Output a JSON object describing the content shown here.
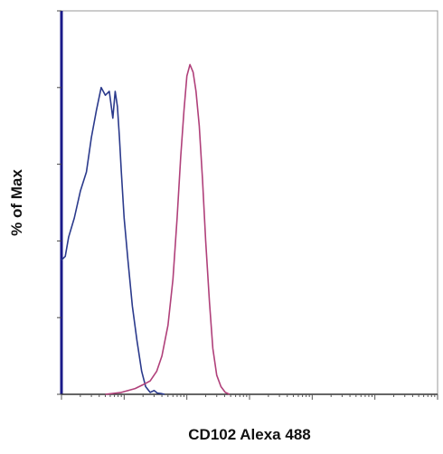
{
  "chart_data": {
    "type": "line",
    "title": "",
    "xlabel": "CD102 Alexa 488",
    "ylabel": "% of Max",
    "xscale": "log",
    "xlim": [
      0.1,
      100000
    ],
    "ylim": [
      0,
      100
    ],
    "grid": false,
    "legend": "none",
    "y_tick_values": [
      0,
      20,
      40,
      60,
      80,
      100
    ],
    "series": [
      {
        "color": "#2b3a8c",
        "x": [
          0.1,
          0.115,
          0.13,
          0.16,
          0.2,
          0.25,
          0.3,
          0.36,
          0.43,
          0.5,
          0.58,
          0.66,
          0.72,
          0.78,
          0.84,
          0.9,
          1.0,
          1.15,
          1.35,
          1.6,
          1.9,
          2.2,
          2.6,
          3.0,
          3.4,
          3.9,
          4.4
        ],
        "y": [
          35,
          36,
          41,
          46,
          53,
          58,
          67,
          74,
          80,
          78,
          79,
          72,
          79,
          75,
          67,
          58,
          46,
          35,
          23,
          14,
          6,
          2,
          0.5,
          1,
          0.3,
          0.2,
          0
        ]
      },
      {
        "color": "#b0407a",
        "x": [
          0.5,
          0.9,
          1.5,
          2.0,
          2.6,
          3.3,
          4.0,
          5.0,
          6.0,
          7.0,
          8.0,
          9.0,
          10.0,
          11.2,
          12.6,
          14.0,
          15.8,
          17.8,
          20.0,
          23.0,
          26.0,
          30.0,
          35.0,
          41.0,
          48.0
        ],
        "y": [
          0,
          0.5,
          1.5,
          2.5,
          3.5,
          6,
          10,
          18,
          30,
          46,
          62,
          74,
          83,
          86,
          84,
          79,
          70,
          56,
          40,
          24,
          12,
          5,
          2,
          0.5,
          0
        ]
      }
    ]
  }
}
